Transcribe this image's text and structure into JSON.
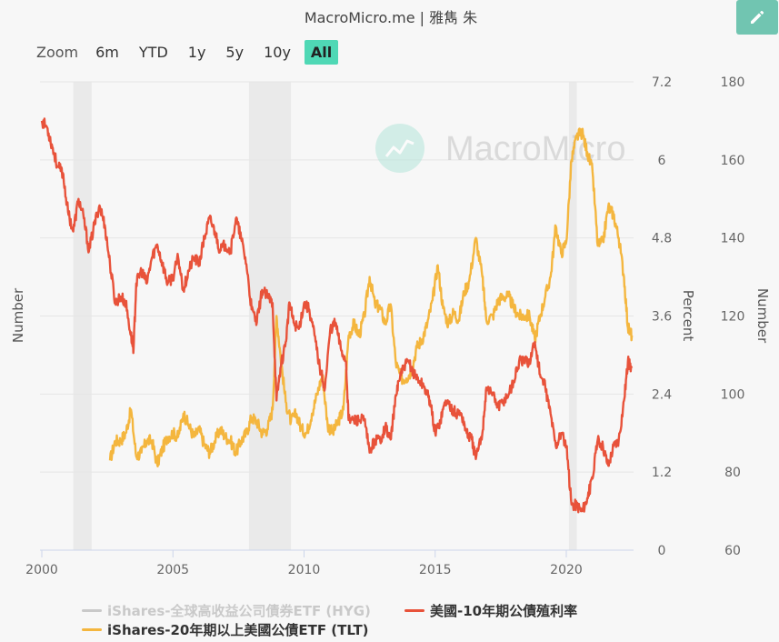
{
  "header": {
    "title": "MacroMicro.me | 雅雋 朱",
    "edit_icon": "pencil-icon"
  },
  "zoom": {
    "label": "Zoom",
    "buttons": [
      "6m",
      "YTD",
      "1y",
      "5y",
      "10y",
      "All"
    ],
    "active": "All"
  },
  "watermark": "MacroMicro",
  "colors": {
    "hyg": "#c9c9c9",
    "tlt": "#f4b63e",
    "yield": "#e8523a",
    "accent": "#4fd8b5",
    "edit_button": "#71c5b1",
    "shade": "#e6e6e6"
  },
  "chart_data": {
    "type": "line",
    "x_ticks": [
      "2000",
      "2005",
      "2010",
      "2015",
      "2020"
    ],
    "y_axes": {
      "left": {
        "label": "Number",
        "ticks": []
      },
      "right1": {
        "label": "Percent",
        "ticks": [
          "0",
          "1.2",
          "2.4",
          "3.6",
          "4.8",
          "6",
          "7.2"
        ],
        "range": [
          0,
          7.2
        ]
      },
      "right2": {
        "label": "Number",
        "ticks": [
          "60",
          "80",
          "100",
          "120",
          "140",
          "160",
          "180"
        ],
        "range": [
          60,
          180
        ]
      }
    },
    "recessions": [
      [
        2001.2,
        2001.9
      ],
      [
        2007.9,
        2009.5
      ],
      [
        2020.1,
        2020.4
      ]
    ],
    "legend": [
      {
        "name": "iShares-全球高收益公司債券ETF (HYG)",
        "color_key": "hyg"
      },
      {
        "name": "美國-10年期公債殖利率",
        "color_key": "yield"
      },
      {
        "name": "iShares-20年期以上美國公債ETF (TLT)",
        "color_key": "tlt"
      }
    ],
    "series": [
      {
        "name": "美國-10年期公債殖利率",
        "axis": "right1",
        "points": [
          [
            2000.0,
            6.6
          ],
          [
            2000.2,
            6.5
          ],
          [
            2000.4,
            6.2
          ],
          [
            2000.6,
            5.9
          ],
          [
            2000.8,
            5.8
          ],
          [
            2001.0,
            5.2
          ],
          [
            2001.2,
            4.9
          ],
          [
            2001.4,
            5.4
          ],
          [
            2001.6,
            5.1
          ],
          [
            2001.8,
            4.6
          ],
          [
            2002.0,
            5.0
          ],
          [
            2002.2,
            5.3
          ],
          [
            2002.4,
            5.0
          ],
          [
            2002.6,
            4.4
          ],
          [
            2002.8,
            3.8
          ],
          [
            2003.0,
            3.9
          ],
          [
            2003.2,
            3.8
          ],
          [
            2003.4,
            3.3
          ],
          [
            2003.5,
            3.1
          ],
          [
            2003.6,
            4.1
          ],
          [
            2003.8,
            4.3
          ],
          [
            2004.0,
            4.1
          ],
          [
            2004.2,
            4.5
          ],
          [
            2004.4,
            4.7
          ],
          [
            2004.6,
            4.4
          ],
          [
            2004.8,
            4.1
          ],
          [
            2005.0,
            4.2
          ],
          [
            2005.2,
            4.5
          ],
          [
            2005.4,
            4.0
          ],
          [
            2005.6,
            4.3
          ],
          [
            2005.8,
            4.5
          ],
          [
            2006.0,
            4.4
          ],
          [
            2006.2,
            4.8
          ],
          [
            2006.4,
            5.1
          ],
          [
            2006.6,
            4.9
          ],
          [
            2006.8,
            4.6
          ],
          [
            2007.0,
            4.7
          ],
          [
            2007.2,
            4.6
          ],
          [
            2007.4,
            5.1
          ],
          [
            2007.6,
            4.8
          ],
          [
            2007.8,
            4.4
          ],
          [
            2008.0,
            3.7
          ],
          [
            2008.2,
            3.5
          ],
          [
            2008.4,
            4.0
          ],
          [
            2008.6,
            3.9
          ],
          [
            2008.8,
            3.8
          ],
          [
            2008.95,
            2.3
          ],
          [
            2009.1,
            2.8
          ],
          [
            2009.3,
            3.2
          ],
          [
            2009.45,
            3.8
          ],
          [
            2009.6,
            3.5
          ],
          [
            2009.8,
            3.4
          ],
          [
            2010.0,
            3.8
          ],
          [
            2010.2,
            3.7
          ],
          [
            2010.4,
            3.3
          ],
          [
            2010.6,
            2.8
          ],
          [
            2010.8,
            2.5
          ],
          [
            2011.0,
            3.4
          ],
          [
            2011.2,
            3.5
          ],
          [
            2011.4,
            3.1
          ],
          [
            2011.6,
            2.9
          ],
          [
            2011.7,
            2.0
          ],
          [
            2011.9,
            2.0
          ],
          [
            2012.1,
            2.0
          ],
          [
            2012.3,
            2.0
          ],
          [
            2012.5,
            1.5
          ],
          [
            2012.7,
            1.7
          ],
          [
            2012.9,
            1.7
          ],
          [
            2013.1,
            1.9
          ],
          [
            2013.3,
            1.7
          ],
          [
            2013.45,
            2.2
          ],
          [
            2013.6,
            2.6
          ],
          [
            2013.8,
            2.8
          ],
          [
            2014.0,
            2.9
          ],
          [
            2014.2,
            2.7
          ],
          [
            2014.4,
            2.6
          ],
          [
            2014.6,
            2.5
          ],
          [
            2014.8,
            2.3
          ],
          [
            2015.0,
            1.8
          ],
          [
            2015.2,
            2.0
          ],
          [
            2015.4,
            2.3
          ],
          [
            2015.6,
            2.2
          ],
          [
            2015.8,
            2.1
          ],
          [
            2016.0,
            2.1
          ],
          [
            2016.2,
            1.8
          ],
          [
            2016.4,
            1.7
          ],
          [
            2016.55,
            1.4
          ],
          [
            2016.8,
            1.8
          ],
          [
            2016.95,
            2.5
          ],
          [
            2017.2,
            2.4
          ],
          [
            2017.4,
            2.2
          ],
          [
            2017.6,
            2.3
          ],
          [
            2017.8,
            2.4
          ],
          [
            2018.0,
            2.6
          ],
          [
            2018.2,
            2.9
          ],
          [
            2018.4,
            2.9
          ],
          [
            2018.6,
            2.9
          ],
          [
            2018.8,
            3.2
          ],
          [
            2019.0,
            2.7
          ],
          [
            2019.2,
            2.5
          ],
          [
            2019.4,
            2.1
          ],
          [
            2019.6,
            1.6
          ],
          [
            2019.8,
            1.8
          ],
          [
            2020.0,
            1.6
          ],
          [
            2020.2,
            0.7
          ],
          [
            2020.4,
            0.7
          ],
          [
            2020.6,
            0.6
          ],
          [
            2020.8,
            0.8
          ],
          [
            2021.0,
            1.1
          ],
          [
            2021.2,
            1.7
          ],
          [
            2021.4,
            1.6
          ],
          [
            2021.6,
            1.3
          ],
          [
            2021.8,
            1.6
          ],
          [
            2022.0,
            1.7
          ],
          [
            2022.2,
            2.3
          ],
          [
            2022.35,
            2.9
          ],
          [
            2022.5,
            2.8
          ]
        ]
      },
      {
        "name": "iShares-20年期以上美國公債ETF (TLT)",
        "axis": "right2",
        "points": [
          [
            2002.6,
            83
          ],
          [
            2002.8,
            88
          ],
          [
            2003.0,
            88
          ],
          [
            2003.2,
            90
          ],
          [
            2003.4,
            96
          ],
          [
            2003.6,
            84
          ],
          [
            2003.8,
            85
          ],
          [
            2004.0,
            88
          ],
          [
            2004.2,
            88
          ],
          [
            2004.4,
            82
          ],
          [
            2004.6,
            86
          ],
          [
            2004.8,
            89
          ],
          [
            2005.0,
            90
          ],
          [
            2005.2,
            89
          ],
          [
            2005.4,
            95
          ],
          [
            2005.6,
            92
          ],
          [
            2005.8,
            89
          ],
          [
            2006.0,
            91
          ],
          [
            2006.2,
            87
          ],
          [
            2006.4,
            85
          ],
          [
            2006.6,
            88
          ],
          [
            2006.8,
            91
          ],
          [
            2007.0,
            89
          ],
          [
            2007.2,
            88
          ],
          [
            2007.4,
            85
          ],
          [
            2007.6,
            88
          ],
          [
            2007.8,
            90
          ],
          [
            2008.0,
            94
          ],
          [
            2008.2,
            93
          ],
          [
            2008.4,
            90
          ],
          [
            2008.6,
            91
          ],
          [
            2008.8,
            96
          ],
          [
            2008.95,
            120
          ],
          [
            2009.1,
            110
          ],
          [
            2009.3,
            98
          ],
          [
            2009.5,
            93
          ],
          [
            2009.7,
            95
          ],
          [
            2009.9,
            91
          ],
          [
            2010.1,
            90
          ],
          [
            2010.3,
            95
          ],
          [
            2010.5,
            100
          ],
          [
            2010.7,
            105
          ],
          [
            2010.9,
            92
          ],
          [
            2011.1,
            90
          ],
          [
            2011.3,
            93
          ],
          [
            2011.5,
            96
          ],
          [
            2011.7,
            115
          ],
          [
            2011.9,
            118
          ],
          [
            2012.1,
            115
          ],
          [
            2012.3,
            120
          ],
          [
            2012.5,
            130
          ],
          [
            2012.7,
            123
          ],
          [
            2012.9,
            122
          ],
          [
            2013.1,
            118
          ],
          [
            2013.3,
            123
          ],
          [
            2013.5,
            108
          ],
          [
            2013.7,
            104
          ],
          [
            2013.9,
            104
          ],
          [
            2014.1,
            106
          ],
          [
            2014.3,
            112
          ],
          [
            2014.5,
            114
          ],
          [
            2014.7,
            118
          ],
          [
            2014.9,
            124
          ],
          [
            2015.1,
            133
          ],
          [
            2015.3,
            122
          ],
          [
            2015.5,
            118
          ],
          [
            2015.7,
            121
          ],
          [
            2015.9,
            119
          ],
          [
            2016.1,
            126
          ],
          [
            2016.3,
            129
          ],
          [
            2016.55,
            140
          ],
          [
            2016.8,
            130
          ],
          [
            2016.95,
            119
          ],
          [
            2017.2,
            120
          ],
          [
            2017.4,
            124
          ],
          [
            2017.6,
            125
          ],
          [
            2017.8,
            125
          ],
          [
            2018.0,
            122
          ],
          [
            2018.2,
            120
          ],
          [
            2018.4,
            120
          ],
          [
            2018.6,
            120
          ],
          [
            2018.8,
            114
          ],
          [
            2019.0,
            120
          ],
          [
            2019.2,
            125
          ],
          [
            2019.4,
            130
          ],
          [
            2019.6,
            143
          ],
          [
            2019.8,
            136
          ],
          [
            2020.0,
            139
          ],
          [
            2020.2,
            160
          ],
          [
            2020.4,
            166
          ],
          [
            2020.6,
            167
          ],
          [
            2020.8,
            162
          ],
          [
            2021.0,
            157
          ],
          [
            2021.2,
            138
          ],
          [
            2021.4,
            139
          ],
          [
            2021.6,
            148
          ],
          [
            2021.8,
            146
          ],
          [
            2022.0,
            140
          ],
          [
            2022.2,
            130
          ],
          [
            2022.35,
            117
          ],
          [
            2022.5,
            115
          ]
        ]
      }
    ]
  }
}
